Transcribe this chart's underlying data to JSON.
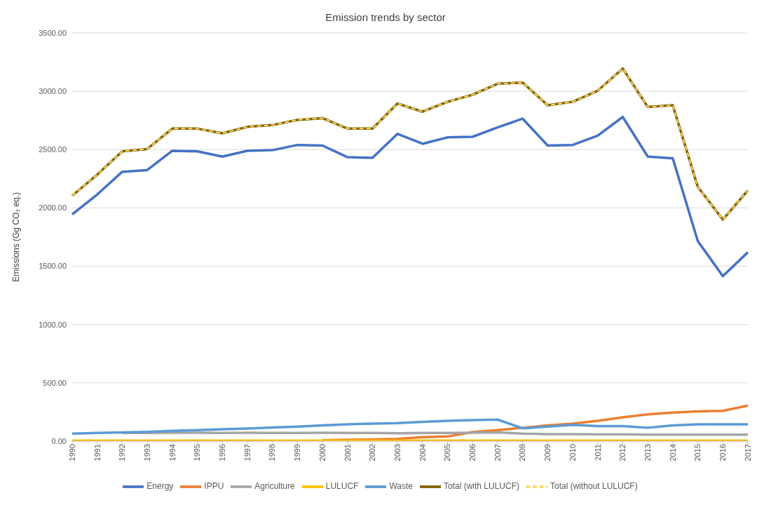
{
  "chart_data": {
    "type": "line",
    "title": "Emission trends by sector",
    "ylabel": "Emissions (Gg CO₂ eq.)",
    "categories": [
      "1990",
      "1991",
      "1992",
      "1993",
      "1994",
      "1995",
      "1996",
      "1997",
      "1998",
      "1999",
      "2000",
      "2001",
      "2002",
      "2003",
      "2004",
      "2005",
      "2006",
      "2007",
      "2008",
      "2009",
      "2010",
      "2011",
      "2012",
      "2013",
      "2014",
      "2015",
      "2016",
      "2017"
    ],
    "ylim": [
      0,
      3500
    ],
    "yticks": [
      {
        "value": 0,
        "label": "0.00"
      },
      {
        "value": 500,
        "label": "500.00"
      },
      {
        "value": 1000,
        "label": "1000.00"
      },
      {
        "value": 1500,
        "label": "1500.00"
      },
      {
        "value": 2000,
        "label": "2000.00"
      },
      {
        "value": 2500,
        "label": "2500.00"
      },
      {
        "value": 3000,
        "label": "3000.00"
      },
      {
        "value": 3500,
        "label": "3500.00"
      }
    ],
    "grid": "y",
    "legend": "bottom",
    "marker": "none",
    "series": [
      {
        "name": "Energy",
        "color": "#4472c4",
        "values": [
          1945,
          2115,
          2310,
          2325,
          2490,
          2485,
          2440,
          2490,
          2495,
          2540,
          2535,
          2435,
          2430,
          2635,
          2550,
          2605,
          2610,
          2690,
          2765,
          2535,
          2540,
          2620,
          2780,
          2440,
          2425,
          1715,
          1415,
          1620
        ]
      },
      {
        "name": "IPPU",
        "color": "#ed7d31",
        "values": [
          null,
          null,
          null,
          null,
          null,
          null,
          null,
          null,
          null,
          null,
          8,
          12,
          15,
          20,
          35,
          40,
          78,
          95,
          115,
          135,
          150,
          175,
          205,
          230,
          245,
          255,
          260,
          305
        ]
      },
      {
        "name": "Agriculture",
        "color": "#a5a5a5",
        "values": [
          null,
          null,
          70,
          70,
          72,
          72,
          70,
          72,
          70,
          70,
          72,
          70,
          70,
          68,
          70,
          70,
          72,
          75,
          65,
          60,
          60,
          58,
          58,
          55,
          55,
          55,
          55,
          55
        ]
      },
      {
        "name": "LULUCF",
        "color": "#ffc000",
        "values": [
          5,
          5,
          5,
          5,
          5,
          5,
          5,
          5,
          5,
          5,
          5,
          5,
          5,
          5,
          5,
          5,
          5,
          5,
          5,
          5,
          5,
          5,
          5,
          5,
          5,
          5,
          5,
          5
        ]
      },
      {
        "name": "Waste",
        "color": "#5b9bd5",
        "values": [
          65,
          70,
          75,
          80,
          88,
          95,
          102,
          108,
          118,
          125,
          135,
          145,
          150,
          155,
          165,
          175,
          180,
          185,
          110,
          125,
          140,
          130,
          130,
          115,
          135,
          145,
          145,
          145
        ]
      },
      {
        "name": "Total (with LULUCF)",
        "color": "#7f6000",
        "values": [
          2105,
          2285,
          2485,
          2505,
          2680,
          2680,
          2640,
          2695,
          2710,
          2755,
          2770,
          2680,
          2680,
          2895,
          2825,
          2910,
          2970,
          3065,
          3075,
          2880,
          2910,
          3005,
          3195,
          2865,
          2880,
          2180,
          1900,
          2150
        ]
      },
      {
        "name": "Total (without LULUCF)",
        "color": "#ffd966",
        "line_style": "dashed",
        "values": [
          2105,
          2285,
          2485,
          2505,
          2680,
          2680,
          2640,
          2695,
          2710,
          2755,
          2770,
          2680,
          2680,
          2895,
          2825,
          2910,
          2970,
          3065,
          3075,
          2880,
          2910,
          3005,
          3195,
          2865,
          2880,
          2180,
          1900,
          2150
        ]
      }
    ]
  }
}
